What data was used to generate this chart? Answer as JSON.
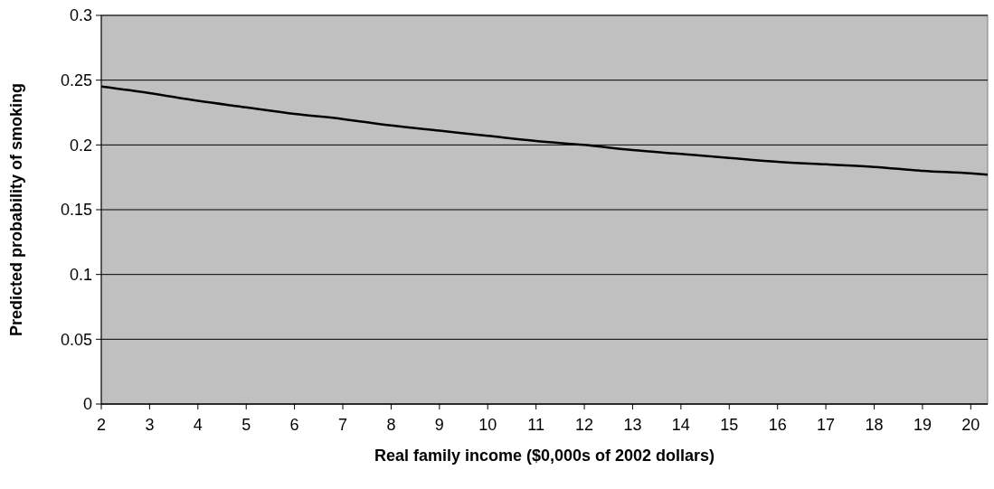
{
  "chart_data": {
    "type": "line",
    "xlabel": "Real family income ($0,000s of 2002 dollars)",
    "ylabel": "Predicted probability of smoking",
    "x": [
      2,
      3,
      4,
      5,
      6,
      7,
      8,
      9,
      10,
      11,
      12,
      13,
      14,
      15,
      16,
      17,
      18,
      19,
      20,
      20.35
    ],
    "series": [
      {
        "color": "#000000",
        "values": [
          0.245,
          0.24,
          0.234,
          0.229,
          0.224,
          0.22,
          0.215,
          0.211,
          0.207,
          0.203,
          0.2,
          0.196,
          0.193,
          0.19,
          0.187,
          0.185,
          0.183,
          0.18,
          0.178,
          0.177
        ]
      }
    ],
    "xlim": [
      2,
      20.35
    ],
    "xticks": [
      2,
      3,
      4,
      5,
      6,
      7,
      8,
      9,
      10,
      11,
      12,
      13,
      14,
      15,
      16,
      17,
      18,
      19,
      20
    ],
    "ylim": [
      0,
      0.3
    ],
    "yticks": [
      0,
      0.05,
      0.1,
      0.15,
      0.2,
      0.25,
      0.3
    ],
    "grid": "y",
    "marker": "none",
    "line_style": "solid"
  }
}
